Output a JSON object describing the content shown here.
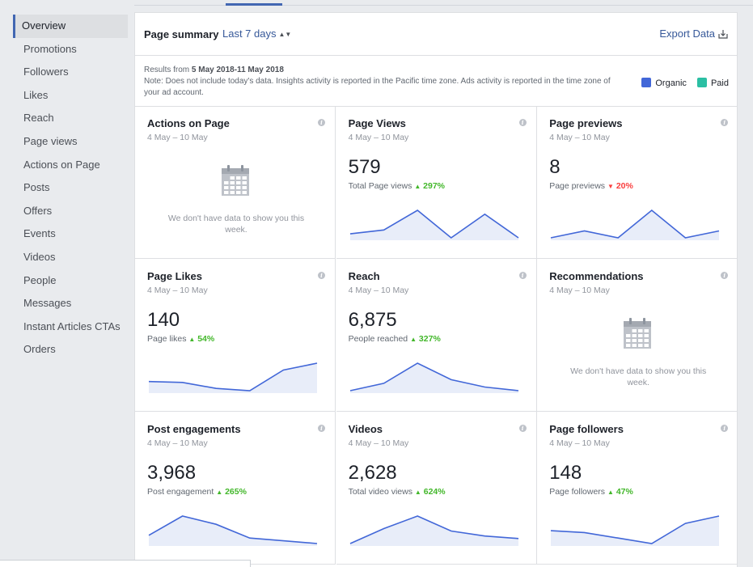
{
  "sidebar": {
    "items": [
      {
        "label": "Overview",
        "active": true
      },
      {
        "label": "Promotions"
      },
      {
        "label": "Followers"
      },
      {
        "label": "Likes"
      },
      {
        "label": "Reach"
      },
      {
        "label": "Page views"
      },
      {
        "label": "Actions on Page"
      },
      {
        "label": "Posts"
      },
      {
        "label": "Offers"
      },
      {
        "label": "Events"
      },
      {
        "label": "Videos"
      },
      {
        "label": "People"
      },
      {
        "label": "Messages"
      },
      {
        "label": "Instant Articles CTAs"
      },
      {
        "label": "Orders"
      }
    ]
  },
  "header": {
    "title": "Page summary",
    "range": "Last 7 days",
    "export": "Export Data"
  },
  "note": {
    "results_prefix": "Results from ",
    "results_range": "5 May 2018-11 May 2018",
    "text": "Note: Does not include today's data. Insights activity is reported in the Pacific time zone. Ads activity is reported in the time zone of your ad account."
  },
  "legend": {
    "organic": {
      "label": "Organic",
      "color": "#4267d8"
    },
    "paid": {
      "label": "Paid",
      "color": "#2bbfa3"
    }
  },
  "colors": {
    "spark_line": "#4267d8",
    "spark_fill": "#e8edf9"
  },
  "cards": [
    {
      "title": "Actions on Page",
      "date": "4 May – 10 May",
      "empty": true,
      "empty_msg": "We don't have data to show you this week."
    },
    {
      "title": "Page Views",
      "date": "4 May – 10 May",
      "value": "579",
      "sub": "Total Page views",
      "trend": "up",
      "change": "297%",
      "spark": [
        2,
        3,
        8,
        1,
        7,
        1
      ]
    },
    {
      "title": "Page previews",
      "date": "4 May – 10 May",
      "value": "8",
      "sub": "Page previews",
      "trend": "down",
      "change": "20%",
      "spark": [
        0,
        1,
        0,
        4,
        0,
        1
      ]
    },
    {
      "title": "Page Likes",
      "date": "4 May – 10 May",
      "value": "140",
      "sub": "Page likes",
      "trend": "up",
      "change": "54%",
      "spark": [
        7,
        6.8,
        5.5,
        5,
        9.5,
        11
      ]
    },
    {
      "title": "Reach",
      "date": "4 May – 10 May",
      "value": "6,875",
      "sub": "People reached",
      "trend": "up",
      "change": "327%",
      "spark": [
        2,
        4,
        9.5,
        5,
        3,
        2
      ]
    },
    {
      "title": "Recommendations",
      "date": "4 May – 10 May",
      "empty": true,
      "empty_msg": "We don't have data to show you this week."
    },
    {
      "title": "Post engagements",
      "date": "4 May – 10 May",
      "value": "3,968",
      "sub": "Post engagement",
      "trend": "up",
      "change": "265%",
      "spark": [
        3,
        10,
        7,
        2,
        1,
        0
      ]
    },
    {
      "title": "Videos",
      "date": "4 May – 10 May",
      "value": "2,628",
      "sub": "Total video views",
      "trend": "up",
      "change": "624%",
      "spark": [
        0,
        6,
        11,
        5,
        3,
        2
      ]
    },
    {
      "title": "Page followers",
      "date": "4 May – 10 May",
      "value": "148",
      "sub": "Page followers",
      "trend": "up",
      "change": "47%",
      "spark": [
        7,
        6.5,
        5,
        3.5,
        9,
        11
      ]
    }
  ]
}
